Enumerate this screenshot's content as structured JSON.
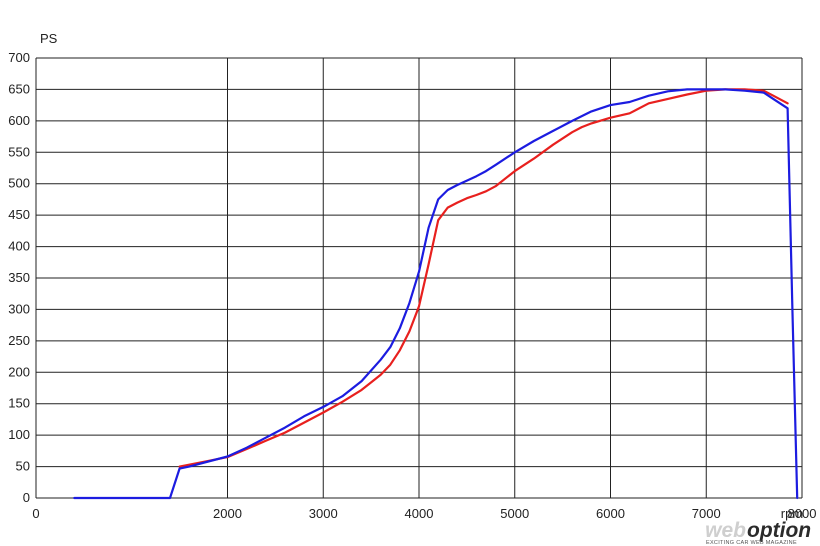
{
  "chart_data": {
    "type": "line",
    "ylabel": "PS",
    "xlabel": "rpm",
    "xlim": [
      0,
      8000
    ],
    "ylim": [
      0,
      700
    ],
    "xticks": [
      0,
      2000,
      3000,
      4000,
      5000,
      6000,
      7000,
      8000
    ],
    "yticks": [
      0,
      50,
      100,
      150,
      200,
      250,
      300,
      350,
      400,
      450,
      500,
      550,
      600,
      650,
      700
    ],
    "grid": true,
    "series": [
      {
        "color": "#e8201e",
        "x": [
          1500,
          1600,
          1800,
          2000,
          2200,
          2400,
          2600,
          2800,
          3000,
          3200,
          3400,
          3600,
          3700,
          3800,
          3900,
          4000,
          4100,
          4200,
          4300,
          4400,
          4500,
          4600,
          4700,
          4800,
          5000,
          5200,
          5400,
          5600,
          5700,
          5800,
          6000,
          6200,
          6400,
          6600,
          6800,
          7000,
          7200,
          7400,
          7600,
          7700,
          7850
        ],
        "y": [
          50,
          53,
          59,
          65,
          78,
          91,
          104,
          120,
          136,
          153,
          172,
          196,
          212,
          235,
          265,
          305,
          372,
          442,
          462,
          470,
          477,
          482,
          488,
          496,
          520,
          540,
          562,
          582,
          590,
          596,
          605,
          612,
          628,
          635,
          642,
          648,
          650,
          650,
          648,
          640,
          628
        ]
      },
      {
        "color": "#1c1ce0",
        "x": [
          400,
          500,
          600,
          800,
          1000,
          1200,
          1400,
          1500,
          1600,
          1800,
          2000,
          2200,
          2400,
          2600,
          2800,
          3000,
          3200,
          3400,
          3600,
          3700,
          3800,
          3900,
          4000,
          4100,
          4200,
          4300,
          4400,
          4500,
          4600,
          4700,
          4800,
          5000,
          5200,
          5400,
          5600,
          5800,
          6000,
          6200,
          6400,
          6600,
          6800,
          7000,
          7200,
          7400,
          7600,
          7700,
          7850,
          7900,
          7950
        ],
        "y": [
          0,
          0,
          0,
          0,
          0,
          0,
          0,
          47,
          50,
          58,
          66,
          80,
          96,
          112,
          130,
          145,
          162,
          186,
          220,
          240,
          270,
          310,
          360,
          430,
          475,
          490,
          498,
          505,
          512,
          520,
          530,
          550,
          568,
          584,
          600,
          615,
          625,
          630,
          640,
          647,
          650,
          650,
          650,
          648,
          645,
          635,
          620,
          300,
          0
        ]
      }
    ]
  },
  "watermark": {
    "brand_prefix": "web",
    "brand_main": "option",
    "tagline": "EXCITING CAR WEB MAGAZINE"
  }
}
